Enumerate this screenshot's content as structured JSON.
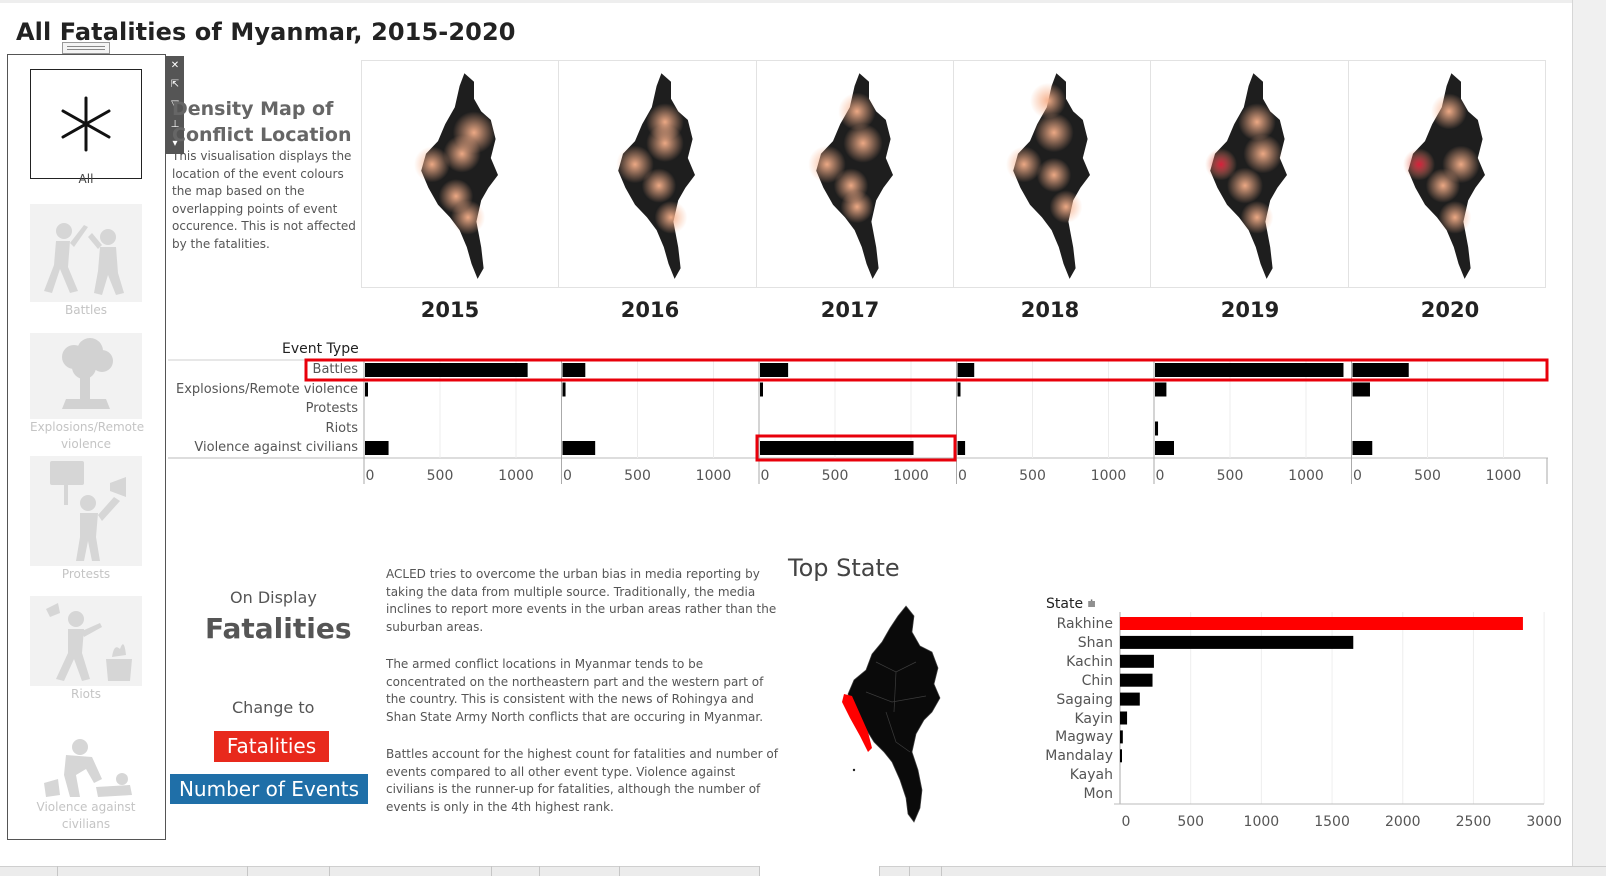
{
  "page": {
    "title": "All Fatalities of Myanmar, 2015-2020"
  },
  "filter_panel": {
    "items": [
      {
        "label": "All",
        "icon": "asterisk-icon",
        "selected": true
      },
      {
        "label": "Battles",
        "icon": "battles-icon",
        "selected": false
      },
      {
        "label": "Explosions/Remote violence",
        "icon": "explosion-icon",
        "selected": false
      },
      {
        "label": "Protests",
        "icon": "protest-icon",
        "selected": false
      },
      {
        "label": "Riots",
        "icon": "riot-icon",
        "selected": false
      },
      {
        "label": "Violence against civilians",
        "icon": "violence-icon",
        "selected": false
      }
    ],
    "tools": [
      "close-icon",
      "popout-icon",
      "filter-icon",
      "pin-icon",
      "dropdown-icon"
    ]
  },
  "density": {
    "title": "Density Map of Conflict Location",
    "description": "This visualisation displays the location of the event colours the map based on the overlapping points of event occurence. This is not affected by the fatalities.",
    "years": [
      "2015",
      "2016",
      "2017",
      "2018",
      "2019",
      "2020"
    ]
  },
  "chart_data": [
    {
      "type": "bar",
      "orientation": "horizontal",
      "header": "Event Type",
      "categories": [
        "Battles",
        "Explosions/Remote violence",
        "Protests",
        "Riots",
        "Violence against civilians"
      ],
      "facets": [
        "2015",
        "2016",
        "2017",
        "2018",
        "2019",
        "2020"
      ],
      "series": [
        {
          "name": "2015",
          "values": [
            1070,
            15,
            0,
            0,
            155
          ]
        },
        {
          "name": "2016",
          "values": [
            150,
            20,
            0,
            0,
            215
          ]
        },
        {
          "name": "2017",
          "values": [
            185,
            12,
            0,
            0,
            1010
          ]
        },
        {
          "name": "2018",
          "values": [
            110,
            15,
            0,
            0,
            50
          ]
        },
        {
          "name": "2019",
          "values": [
            1240,
            75,
            0,
            20,
            125
          ]
        },
        {
          "name": "2020",
          "values": [
            370,
            115,
            0,
            0,
            130
          ]
        }
      ],
      "xlim": [
        0,
        1300
      ],
      "xticks": [
        0,
        500,
        1000
      ],
      "highlight": {
        "row_color": "#e8000b"
      }
    },
    {
      "type": "bar",
      "orientation": "horizontal",
      "title": "Top State",
      "header": "State",
      "categories": [
        "Rakhine",
        "Shan",
        "Kachin",
        "Chin",
        "Sagaing",
        "Kayin",
        "Magway",
        "Mandalay",
        "Kayah",
        "Mon"
      ],
      "values": [
        2850,
        1650,
        240,
        230,
        140,
        50,
        20,
        5,
        3,
        2
      ],
      "xlim": [
        0,
        3000
      ],
      "xticks": [
        0,
        500,
        1000,
        1500,
        2000,
        2500,
        3000
      ],
      "colors": {
        "highlight": "#ff0000",
        "default": "#000000"
      }
    }
  ],
  "bottom": {
    "on_display_label": "On Display",
    "on_display_value": "Fatalities",
    "change_to_label": "Change to",
    "buttons": {
      "fatalities": "Fatalities",
      "events": "Number of Events"
    },
    "paragraphs": [
      "ACLED tries to overcome the urban bias in media reporting by taking the data from multiple source. Traditionally, the media inclines to report more events in the urban areas rather than the suburban areas.",
      "The armed conflict locations in Myanmar tends to be concentrated on the northeastern part and the western part of the country. This is consistent with the news of Rohingya and Shan State Army North conflicts that are occuring in Myanmar.",
      "Battles account for the highest count for fatalities and number of events compared to all other event type. Violence against civilians is the runner-up for fatalities, although the number of events is only in the 4th highest rank."
    ],
    "top_state_title": "Top State",
    "state_header": "State"
  },
  "colors": {
    "btn_fatalities": "#e8291c",
    "btn_events": "#1f6fa8",
    "highlight": "#e8000b"
  }
}
